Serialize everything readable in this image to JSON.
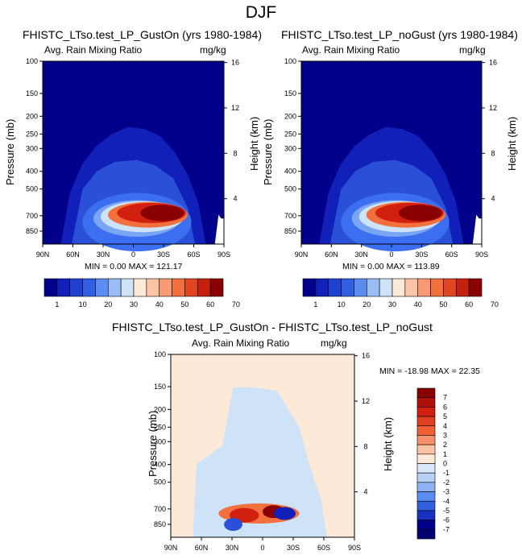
{
  "page_title": "DJF",
  "colors": {
    "navy": "#00008a",
    "deep_blue": "#1020b8",
    "blue": "#2a50d8",
    "mid_blue": "#3c6ef0",
    "light_blue": "#7aa5f5",
    "pale_blue": "#cfe3f8",
    "cream": "#fde9d8",
    "orange": "#f2703e",
    "red": "#d22010",
    "dark_red": "#8a0000"
  },
  "chart_data": [
    {
      "type": "heatmap",
      "title": "FHISTC_LTso.test_LP_GustOn (yrs 1980-1984)",
      "subtitle_left": "Avg. Rain Mixing Ratio",
      "subtitle_right": "mg/kg",
      "ylabel": "Pressure (mb)",
      "ylabel_right": "Height (km)",
      "x_ticks": [
        "90N",
        "60N",
        "30N",
        "0",
        "30S",
        "60S",
        "90S"
      ],
      "y_ticks": [
        "100",
        "150",
        "200",
        "250",
        "300",
        "400",
        "500",
        "700",
        "850"
      ],
      "y_ticks_right": [
        "16",
        "12",
        "8",
        "4"
      ],
      "ylim": [
        1000,
        100
      ],
      "stats_text": "MIN =   0.00   MAX = 121.17",
      "min": 0.0,
      "max": 121.17,
      "colorbar_labels": [
        "1",
        "10",
        "20",
        "30",
        "40",
        "50",
        "60",
        "70"
      ]
    },
    {
      "type": "heatmap",
      "title": "FHISTC_LTso.test_LP_noGust (yrs 1980-1984)",
      "subtitle_left": "Avg. Rain Mixing Ratio",
      "subtitle_right": "mg/kg",
      "ylabel": "Pressure (mb)",
      "ylabel_right": "Height (km)",
      "x_ticks": [
        "90N",
        "60N",
        "30N",
        "0",
        "30S",
        "60S",
        "90S"
      ],
      "y_ticks": [
        "100",
        "150",
        "200",
        "250",
        "300",
        "400",
        "500",
        "700",
        "850"
      ],
      "y_ticks_right": [
        "16",
        "12",
        "8",
        "4"
      ],
      "ylim": [
        1000,
        100
      ],
      "stats_text": "MIN =   0.00   MAX = 113.89",
      "min": 0.0,
      "max": 113.89,
      "colorbar_labels": [
        "1",
        "10",
        "20",
        "30",
        "40",
        "50",
        "60",
        "70"
      ]
    },
    {
      "type": "heatmap",
      "title": "FHISTC_LTso.test_LP_GustOn - FHISTC_LTso.test_LP_noGust",
      "subtitle_left": "Avg. Rain Mixing Ratio",
      "subtitle_right": "mg/kg",
      "ylabel": "Pressure (mb)",
      "ylabel_right": "Height (km)",
      "x_ticks": [
        "90N",
        "60N",
        "30N",
        "0",
        "30S",
        "60S",
        "90S"
      ],
      "y_ticks": [
        "100",
        "150",
        "200",
        "250",
        "300",
        "400",
        "500",
        "700",
        "850"
      ],
      "y_ticks_right": [
        "16",
        "12",
        "8",
        "4"
      ],
      "ylim": [
        1000,
        100
      ],
      "stats_text": "MIN = -18.98   MAX =  22.35",
      "min": -18.98,
      "max": 22.35,
      "colorbar_labels": [
        "7",
        "6",
        "5",
        "4",
        "3",
        "2",
        "1",
        "0",
        "-1",
        "-2",
        "-3",
        "-4",
        "-5",
        "-6",
        "-7"
      ]
    }
  ]
}
